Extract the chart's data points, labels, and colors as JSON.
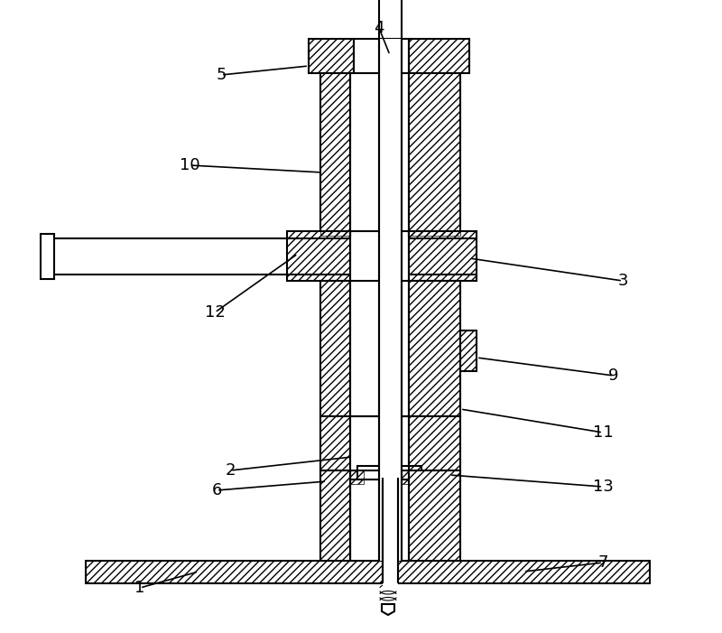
{
  "bg_color": "#ffffff",
  "lc": "#000000",
  "lw": 1.5,
  "thin_lw": 0.8,
  "hatch_density": "////",
  "figsize": [
    8.0,
    7.01
  ],
  "dpi": 100
}
